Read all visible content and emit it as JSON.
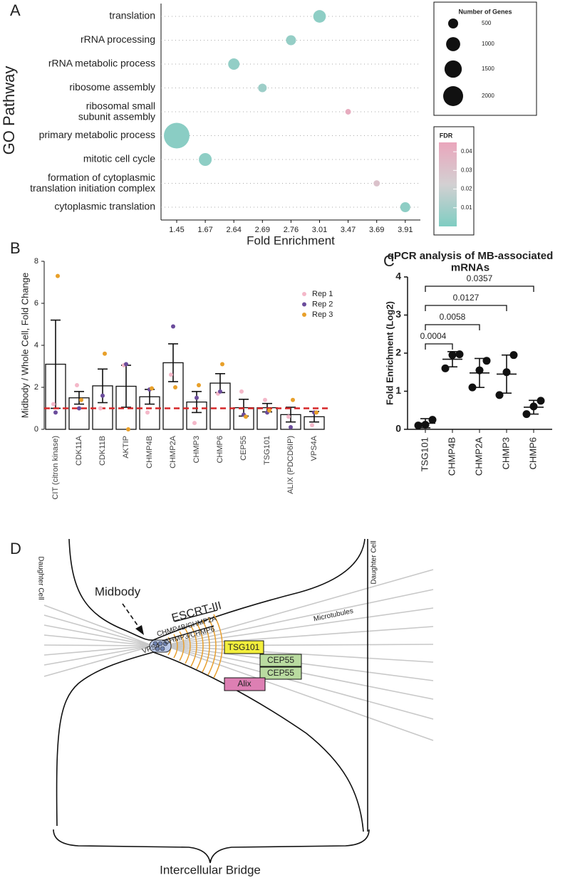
{
  "chart_data": [
    {
      "type": "dot",
      "panel": "A",
      "y_label": "GO Pathway",
      "x_label": "Fold Enrichment",
      "xscale": "ordinal",
      "categories": [
        "translation",
        "rRNA processing",
        "rRNA metabolic process",
        "ribosome assembly",
        "ribosomal small\nsubunit assembly",
        "primary metabolic process",
        "mitotic cell cycle",
        "formation of cytoplasmic\ntranslation initiation complex",
        "cytoplasmic translation"
      ],
      "fold_enrichment": [
        3.01,
        2.76,
        2.64,
        2.69,
        3.47,
        1.45,
        1.67,
        3.69,
        3.91
      ],
      "gene_counts": [
        800,
        500,
        650,
        370,
        160,
        3300,
        830,
        200,
        500
      ],
      "fdr": [
        0.004,
        0.006,
        0.005,
        0.008,
        0.042,
        0.003,
        0.004,
        0.03,
        0.004
      ],
      "xticks": [
        1.45,
        1.67,
        2.64,
        2.69,
        2.76,
        3.01,
        3.47,
        3.69,
        3.91
      ],
      "size_legend": {
        "title": "Number of Genes",
        "values": [
          500,
          1000,
          1500,
          2000
        ]
      },
      "color_legend": {
        "title": "FDR",
        "lim": [
          0,
          0.045
        ],
        "ticks": [
          0.01,
          0.02,
          0.03,
          0.04
        ],
        "colors": [
          "#7fcdc2",
          "#d3d0d2",
          "#eaa6bc"
        ]
      }
    },
    {
      "type": "bar",
      "panel": "B",
      "y_label": "Midbody / Whole Cell, Fold Change",
      "categories": [
        "CIT (citron kinase)",
        "CDK11A",
        "CDK11B",
        "AKTIP",
        "CHMP4B",
        "CHMP2A",
        "CHMP3",
        "CHMP6",
        "CEP55",
        "TSG101",
        "ALIX (PDCD6IP)",
        "VPS4A"
      ],
      "values": [
        3.1,
        1.5,
        2.07,
        2.05,
        1.55,
        3.17,
        1.3,
        2.2,
        1.03,
        1.03,
        0.7,
        0.6
      ],
      "errors": [
        2.1,
        0.3,
        0.8,
        1.0,
        0.35,
        0.9,
        0.5,
        0.45,
        0.4,
        0.2,
        0.35,
        0.25
      ],
      "series": [
        {
          "name": "Rep 1",
          "color": "#f4b8c9",
          "values": [
            1.2,
            2.1,
            1.0,
            3.05,
            0.8,
            2.6,
            0.3,
            1.7,
            1.8,
            1.4,
            0.6,
            0.2
          ]
        },
        {
          "name": "Rep 2",
          "color": "#6b4c9c",
          "values": [
            0.8,
            1.0,
            1.6,
            3.1,
            1.9,
            4.9,
            1.5,
            1.8,
            0.7,
            0.8,
            0.1,
            0.8
          ]
        },
        {
          "name": "Rep 3",
          "color": "#e8a02a",
          "values": [
            7.3,
            1.4,
            3.6,
            0.0,
            1.95,
            2.0,
            2.1,
            3.1,
            0.6,
            0.9,
            1.4,
            0.8
          ]
        }
      ],
      "reference_line": {
        "value": 1,
        "color": "#d62728"
      },
      "ylim": [
        0,
        8
      ],
      "yticks": [
        0,
        2,
        4,
        6,
        8
      ]
    },
    {
      "type": "dot-mean",
      "panel": "C",
      "title": "qPCR analysis of MB-associated\nmRNAs",
      "y_label": "Fold Enrichment (Log2)",
      "categories": [
        "TSG101",
        "CHMP4B",
        "CHMP2A",
        "CHMP3",
        "CHMP6"
      ],
      "points": [
        [
          0.1,
          0.12,
          0.25
        ],
        [
          1.6,
          1.95,
          1.97
        ],
        [
          1.1,
          1.55,
          1.8
        ],
        [
          0.9,
          1.5,
          1.95
        ],
        [
          0.4,
          0.6,
          0.75
        ]
      ],
      "values": [
        0.16,
        1.84,
        1.48,
        1.45,
        0.58
      ],
      "errors": [
        0.12,
        0.2,
        0.38,
        0.5,
        0.18
      ],
      "p_values": [
        0.0004,
        0.0058,
        0.0127,
        0.0357
      ],
      "color": "#111111",
      "ylim": [
        0,
        4
      ],
      "yticks": [
        0,
        1,
        2,
        3,
        4
      ]
    }
  ],
  "diagram": {
    "panel": "D",
    "labels": {
      "midbody": "Midbody",
      "escrt": "ESCRT-III",
      "chmp_a": "CHMP4B/CHMP2A",
      "chmp_b": "CHMP3/CHMP6",
      "vps4": "VPS4",
      "tsg101": "TSG101",
      "cep55_1": "CEP55",
      "cep55_2": "CEP55",
      "alix": "Alix",
      "microtubules": "Microtubules",
      "daughter_left": "Daughter Cell",
      "daughter_right": "Daughter Cell",
      "bridge": "Intercellular Bridge"
    }
  }
}
